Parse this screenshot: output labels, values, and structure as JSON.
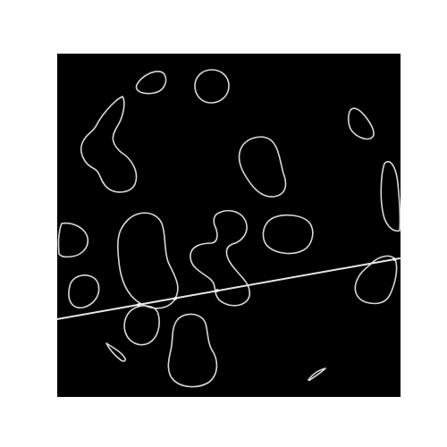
{
  "figure": {
    "kind": "contour-outline-image",
    "background_color": "#000000",
    "page_color": "#ffffff",
    "contour_color": "#d8d8d8",
    "line_color": "#e6e6e6",
    "contour_count": 24,
    "line_count": 1,
    "junction_count": 4
  }
}
